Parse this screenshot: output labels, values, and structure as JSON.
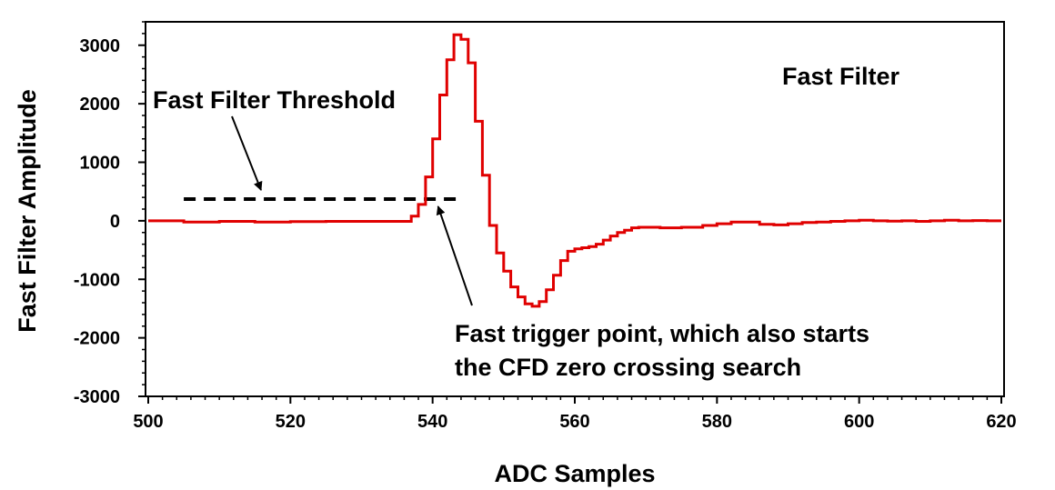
{
  "chart_data": {
    "type": "line",
    "title": "Fast Filter",
    "xlabel": "ADC Samples",
    "ylabel": "Fast Filter Amplitude",
    "xlim": [
      500,
      620
    ],
    "ylim": [
      -3000,
      3400
    ],
    "xticks": [
      500,
      520,
      540,
      560,
      580,
      600,
      620
    ],
    "yticks": [
      -3000,
      -2000,
      -1000,
      0,
      1000,
      2000,
      3000
    ],
    "grid": false,
    "series": [
      {
        "color": "#e00000",
        "step": true,
        "x": [
          500,
          505,
          510,
          515,
          520,
          525,
          530,
          535,
          537,
          538,
          539,
          540,
          541,
          542,
          543,
          544,
          545,
          546,
          547,
          548,
          549,
          550,
          551,
          552,
          553,
          554,
          555,
          556,
          557,
          558,
          559,
          560,
          561,
          562,
          563,
          564,
          565,
          566,
          567,
          568,
          569,
          570,
          572,
          575,
          578,
          580,
          582,
          584,
          586,
          588,
          590,
          592,
          594,
          596,
          598,
          600,
          602,
          604,
          606,
          608,
          610,
          612,
          614,
          616,
          618,
          620
        ],
        "y": [
          0,
          -20,
          -10,
          -20,
          -15,
          -10,
          -10,
          -10,
          80,
          280,
          750,
          1400,
          2150,
          2750,
          3180,
          3100,
          2700,
          1700,
          780,
          -80,
          -550,
          -860,
          -1130,
          -1300,
          -1420,
          -1460,
          -1380,
          -1180,
          -930,
          -680,
          -520,
          -480,
          -460,
          -440,
          -400,
          -330,
          -260,
          -200,
          -160,
          -120,
          -110,
          -110,
          -120,
          -110,
          -80,
          -50,
          -20,
          -20,
          -60,
          -70,
          -50,
          -30,
          -20,
          -10,
          0,
          10,
          0,
          -5,
          0,
          -10,
          0,
          10,
          0,
          5,
          0,
          0
        ]
      }
    ],
    "annotations": {
      "threshold_label": "Fast Filter Threshold",
      "threshold_value": 370,
      "threshold_x_range": [
        505,
        544
      ],
      "trigger_label_line1": "Fast trigger point, which also starts",
      "trigger_label_line2": "the CFD zero crossing search",
      "trigger_point": [
        540,
        370
      ]
    }
  }
}
